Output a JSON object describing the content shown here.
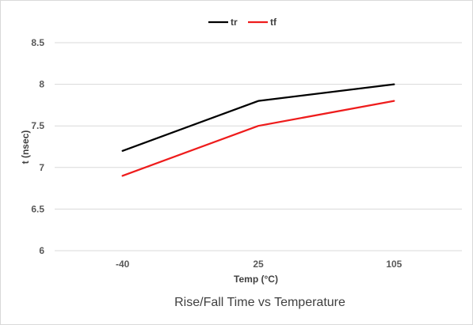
{
  "chart_data": {
    "type": "line",
    "title": "Rise/Fall Time vs Temperature",
    "xlabel": "Temp (°C)",
    "ylabel": "t (nsec)",
    "categories": [
      "-40",
      "25",
      "105"
    ],
    "series": [
      {
        "name": "tr",
        "values": [
          7.2,
          7.8,
          8.0
        ],
        "color": "#000000"
      },
      {
        "name": "tf",
        "values": [
          6.9,
          7.5,
          7.8
        ],
        "color": "#ee1c1c"
      }
    ],
    "ylim": [
      6,
      8.5
    ],
    "yticks": [
      "6",
      "6.5",
      "7",
      "7.5",
      "8",
      "8.5"
    ],
    "grid": "horizontal",
    "legend_position": "top",
    "gridline_color": "#d9d9d9",
    "axis_color": "#d9d9d9"
  }
}
